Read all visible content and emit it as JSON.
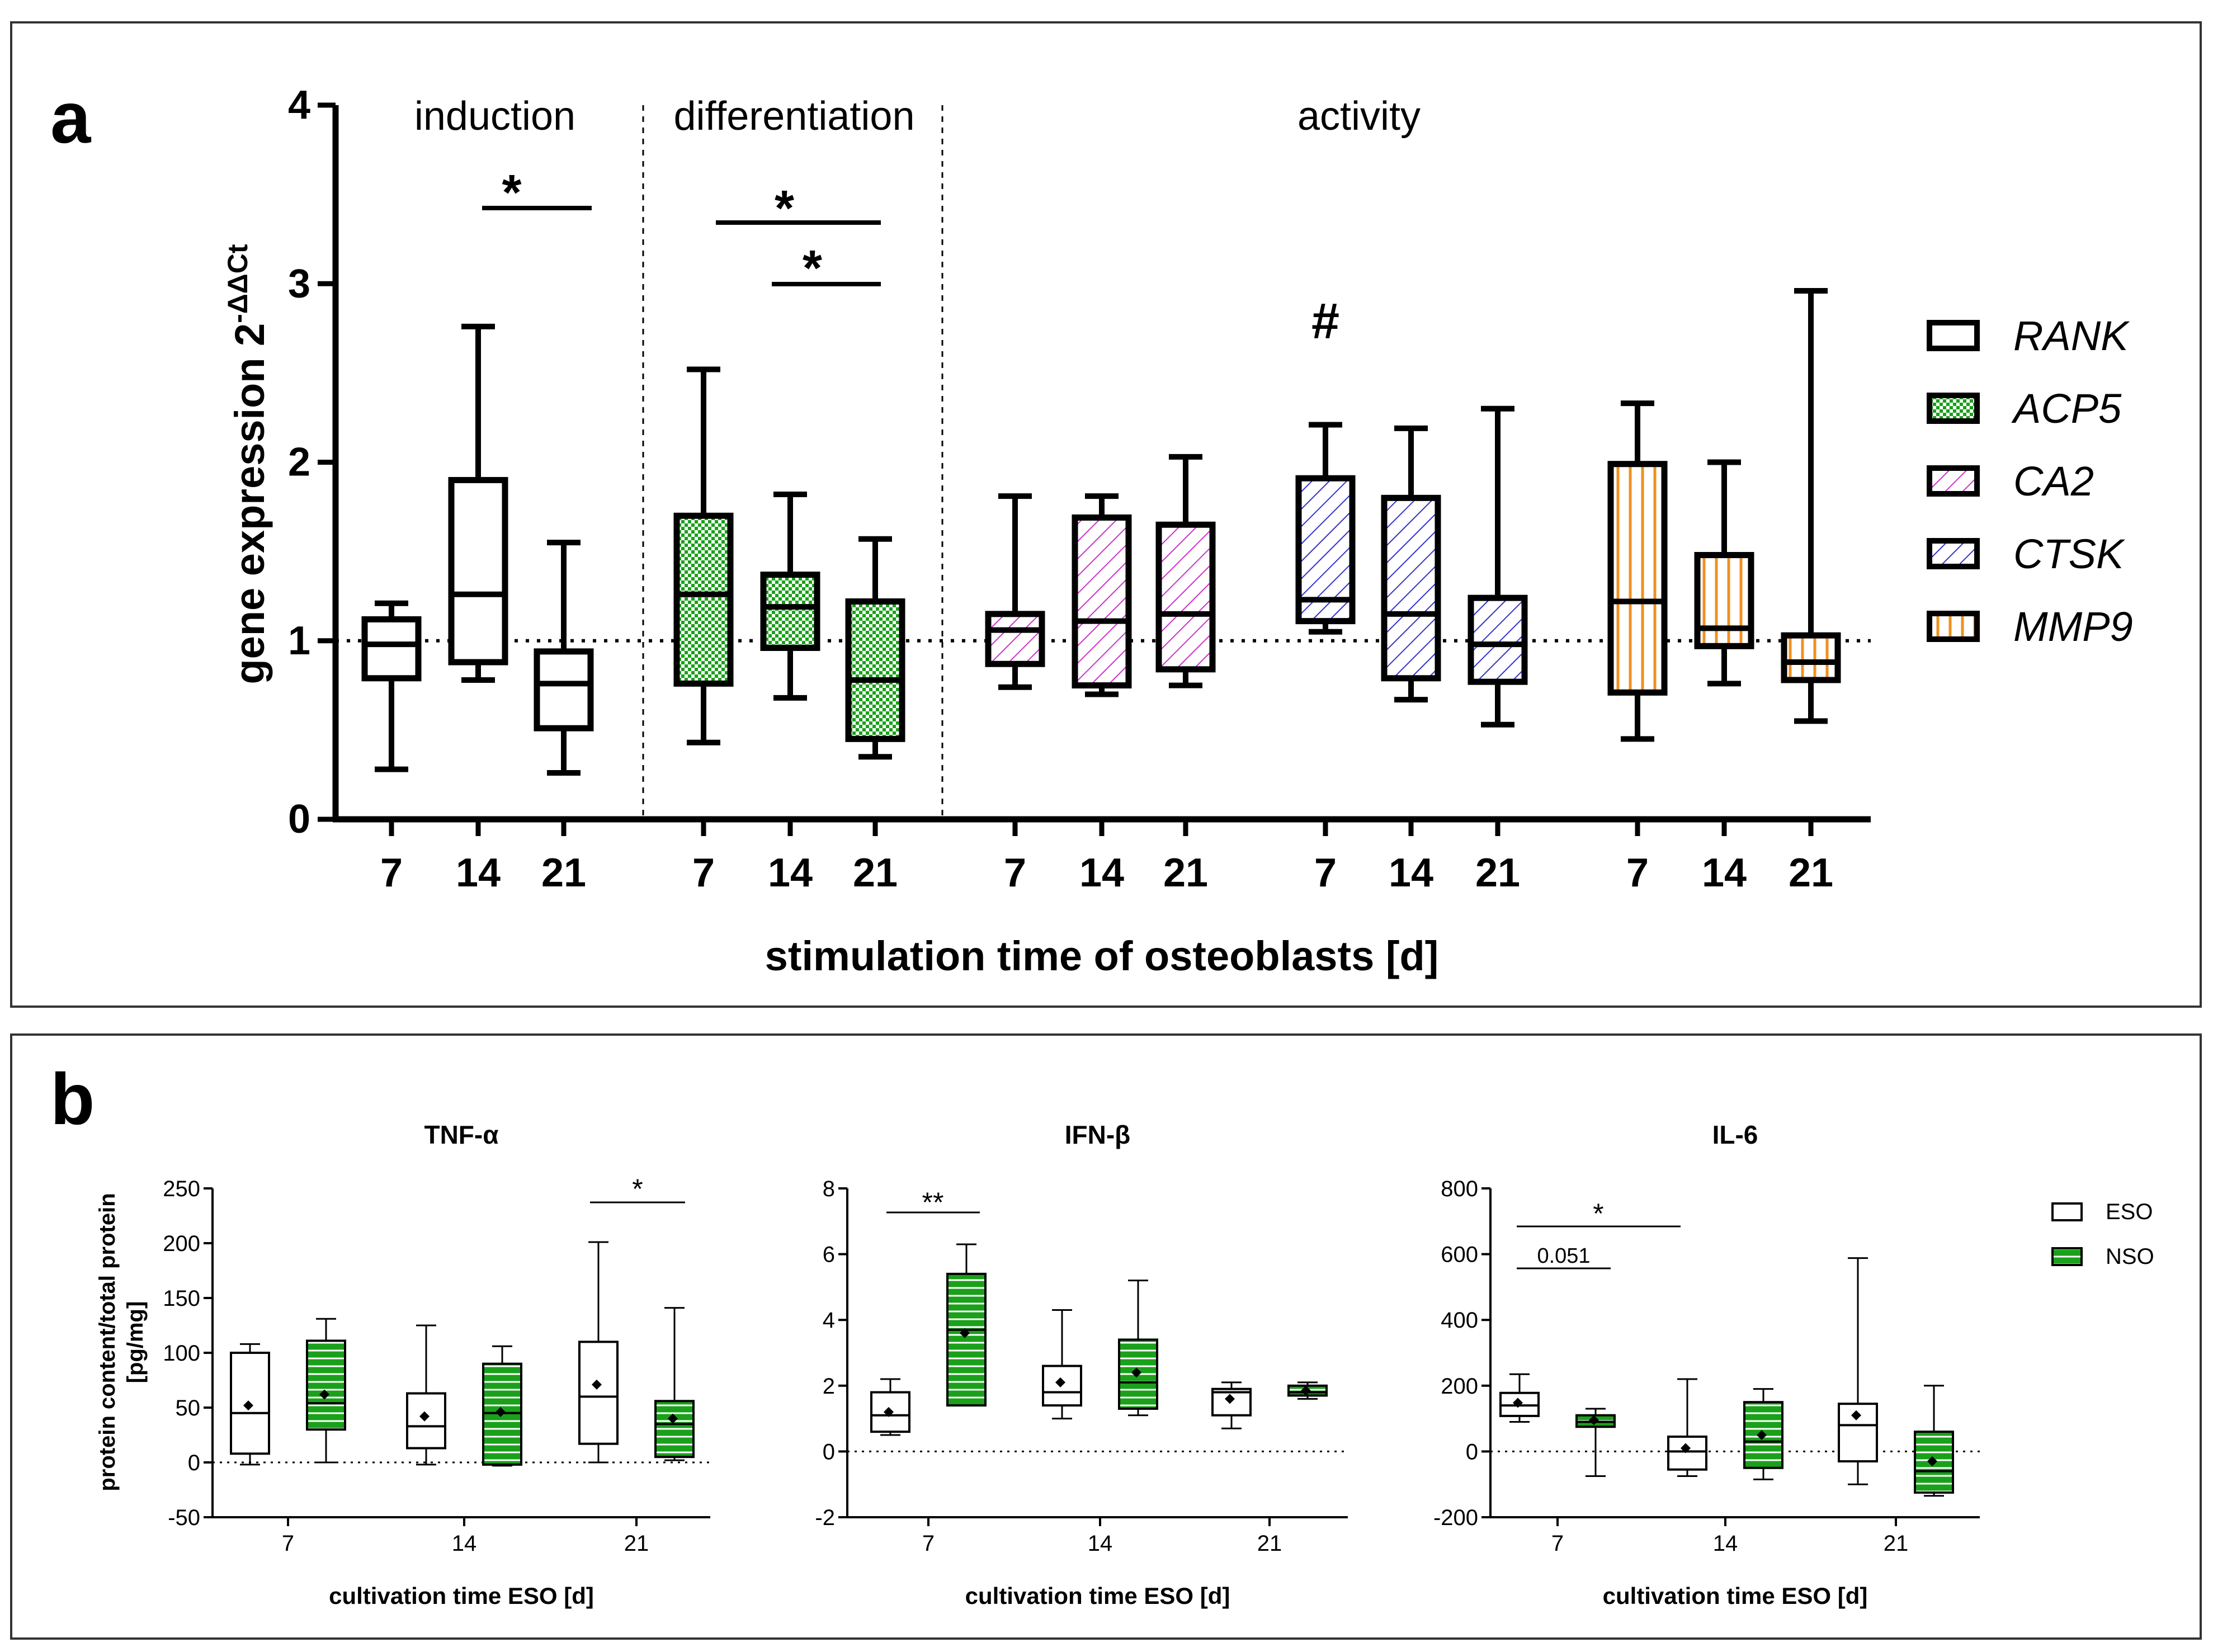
{
  "figure": {
    "panel_a_label": "a",
    "panel_b_label": "b"
  },
  "chart_data": [
    {
      "type": "box",
      "panel": "a",
      "ylabel": "gene expression 2",
      "ylabel_superscript": "-ΔΔCt",
      "xlabel": "stimulation time of osteoblasts [d]",
      "ylim": [
        0,
        4
      ],
      "yticks": [
        "0",
        "1",
        "2",
        "3",
        "4"
      ],
      "reference_line": 1,
      "sections": [
        "induction",
        "differentiation",
        "activity"
      ],
      "significance": [
        "*",
        "*",
        "*"
      ],
      "hash_marker": "#",
      "legend": [
        {
          "gene": "RANK",
          "color": "#ffffff",
          "pattern": "none"
        },
        {
          "gene": "ACP5",
          "color": "#1aa01a",
          "pattern": "checker"
        },
        {
          "gene": "CA2",
          "color": "#cc33cc",
          "pattern": "diag"
        },
        {
          "gene": "CTSK",
          "color": "#3333cc",
          "pattern": "diag"
        },
        {
          "gene": "MMP9",
          "color": "#f0901e",
          "pattern": "vert"
        }
      ],
      "groups": [
        {
          "gene": "RANK",
          "boxes": [
            {
              "x": "7",
              "min": 0.28,
              "q1": 0.79,
              "median": 0.98,
              "q3": 1.12,
              "max": 1.21
            },
            {
              "x": "14",
              "min": 0.78,
              "q1": 0.88,
              "median": 1.26,
              "q3": 1.9,
              "max": 2.76
            },
            {
              "x": "21",
              "min": 0.26,
              "q1": 0.51,
              "median": 0.76,
              "q3": 0.94,
              "max": 1.55
            }
          ]
        },
        {
          "gene": "ACP5",
          "boxes": [
            {
              "x": "7",
              "min": 0.43,
              "q1": 0.76,
              "median": 1.26,
              "q3": 1.7,
              "max": 2.52
            },
            {
              "x": "14",
              "min": 0.68,
              "q1": 0.96,
              "median": 1.19,
              "q3": 1.37,
              "max": 1.82
            },
            {
              "x": "21",
              "min": 0.35,
              "q1": 0.45,
              "median": 0.78,
              "q3": 1.22,
              "max": 1.57
            }
          ]
        },
        {
          "gene": "CA2",
          "boxes": [
            {
              "x": "7",
              "min": 0.74,
              "q1": 0.87,
              "median": 1.06,
              "q3": 1.15,
              "max": 1.81
            },
            {
              "x": "14",
              "min": 0.7,
              "q1": 0.75,
              "median": 1.11,
              "q3": 1.69,
              "max": 1.81
            },
            {
              "x": "21",
              "min": 0.75,
              "q1": 0.84,
              "median": 1.15,
              "q3": 1.65,
              "max": 2.03
            }
          ]
        },
        {
          "gene": "CTSK",
          "boxes": [
            {
              "x": "7",
              "min": 1.05,
              "q1": 1.11,
              "median": 1.23,
              "q3": 1.91,
              "max": 2.21
            },
            {
              "x": "14",
              "min": 0.67,
              "q1": 0.79,
              "median": 1.15,
              "q3": 1.8,
              "max": 2.19
            },
            {
              "x": "21",
              "min": 0.53,
              "q1": 0.77,
              "median": 0.98,
              "q3": 1.24,
              "max": 2.3
            }
          ]
        },
        {
          "gene": "MMP9",
          "boxes": [
            {
              "x": "7",
              "min": 0.45,
              "q1": 0.71,
              "median": 1.22,
              "q3": 1.99,
              "max": 2.33
            },
            {
              "x": "14",
              "min": 0.76,
              "q1": 0.97,
              "median": 1.07,
              "q3": 1.48,
              "max": 2.0
            },
            {
              "x": "21",
              "min": 0.55,
              "q1": 0.78,
              "median": 0.88,
              "q3": 1.03,
              "max": 2.96
            }
          ]
        }
      ]
    },
    {
      "type": "box",
      "panel": "b",
      "title": "TNF-α",
      "ylabel": "protein content/total protein",
      "ylabel2": "[pg/mg]",
      "xlabel": "cultivation time ESO [d]",
      "ylim": [
        -50,
        250
      ],
      "yticks": [
        "-50",
        "0",
        "50",
        "100",
        "150",
        "200",
        "250"
      ],
      "categories": [
        "7",
        "14",
        "21"
      ],
      "series": [
        {
          "name": "ESO",
          "boxes": [
            {
              "min": -2,
              "q1": 8,
              "median": 45,
              "q3": 100,
              "max": 108,
              "mean": 52
            },
            {
              "min": -2,
              "q1": 13,
              "median": 33,
              "q3": 63,
              "max": 125,
              "mean": 42
            },
            {
              "min": 0,
              "q1": 17,
              "median": 60,
              "q3": 110,
              "max": 201,
              "mean": 71
            }
          ]
        },
        {
          "name": "NSO",
          "boxes": [
            {
              "min": 0,
              "q1": 30,
              "median": 54,
              "q3": 111,
              "max": 131,
              "mean": 62
            },
            {
              "min": -3,
              "q1": -2,
              "median": 45,
              "q3": 90,
              "max": 106,
              "mean": 46
            },
            {
              "min": 2,
              "q1": 5,
              "median": 35,
              "q3": 56,
              "max": 141,
              "mean": 40
            }
          ]
        }
      ],
      "annotations": [
        "*"
      ]
    },
    {
      "type": "box",
      "panel": "b",
      "title": "IFN-β",
      "xlabel": "cultivation time ESO [d]",
      "ylim": [
        -2,
        8
      ],
      "yticks": [
        "-2",
        "0",
        "2",
        "4",
        "6",
        "8"
      ],
      "categories": [
        "7",
        "14",
        "21"
      ],
      "series": [
        {
          "name": "ESO",
          "boxes": [
            {
              "min": 0.5,
              "q1": 0.6,
              "median": 1.1,
              "q3": 1.8,
              "max": 2.2,
              "mean": 1.2
            },
            {
              "min": 1.0,
              "q1": 1.4,
              "median": 1.8,
              "q3": 2.6,
              "max": 4.3,
              "mean": 2.1
            },
            {
              "min": 0.7,
              "q1": 1.1,
              "median": 1.8,
              "q3": 1.9,
              "max": 2.1,
              "mean": 1.6
            }
          ]
        },
        {
          "name": "NSO",
          "boxes": [
            {
              "min": 1.4,
              "q1": 1.4,
              "median": 3.7,
              "q3": 5.4,
              "max": 6.3,
              "mean": 3.6
            },
            {
              "min": 1.1,
              "q1": 1.3,
              "median": 2.1,
              "q3": 3.4,
              "max": 5.2,
              "mean": 2.4
            },
            {
              "min": 1.6,
              "q1": 1.7,
              "median": 1.8,
              "q3": 2.0,
              "max": 2.1,
              "mean": 1.85
            }
          ]
        }
      ],
      "annotations": [
        "**"
      ]
    },
    {
      "type": "box",
      "panel": "b",
      "title": "IL-6",
      "xlabel": "cultivation time ESO [d]",
      "ylim": [
        -200,
        800
      ],
      "yticks": [
        "-200",
        "0",
        "200",
        "400",
        "600",
        "800"
      ],
      "categories": [
        "7",
        "14",
        "21"
      ],
      "series": [
        {
          "name": "ESO",
          "boxes": [
            {
              "min": 90,
              "q1": 108,
              "median": 140,
              "q3": 178,
              "max": 235,
              "mean": 148
            },
            {
              "min": -75,
              "q1": -55,
              "median": 0,
              "q3": 45,
              "max": 220,
              "mean": 10
            },
            {
              "min": -100,
              "q1": -30,
              "median": 80,
              "q3": 145,
              "max": 588,
              "mean": 110
            }
          ]
        },
        {
          "name": "NSO",
          "boxes": [
            {
              "min": -75,
              "q1": 75,
              "median": 90,
              "q3": 110,
              "max": 130,
              "mean": 95
            },
            {
              "min": -85,
              "q1": -50,
              "median": 30,
              "q3": 150,
              "max": 190,
              "mean": 50
            },
            {
              "min": -135,
              "q1": -125,
              "median": -60,
              "q3": 60,
              "max": 200,
              "mean": -30
            }
          ]
        }
      ],
      "annotations": [
        "*",
        "0.051"
      ],
      "legend": [
        "ESO",
        "NSO"
      ]
    }
  ]
}
